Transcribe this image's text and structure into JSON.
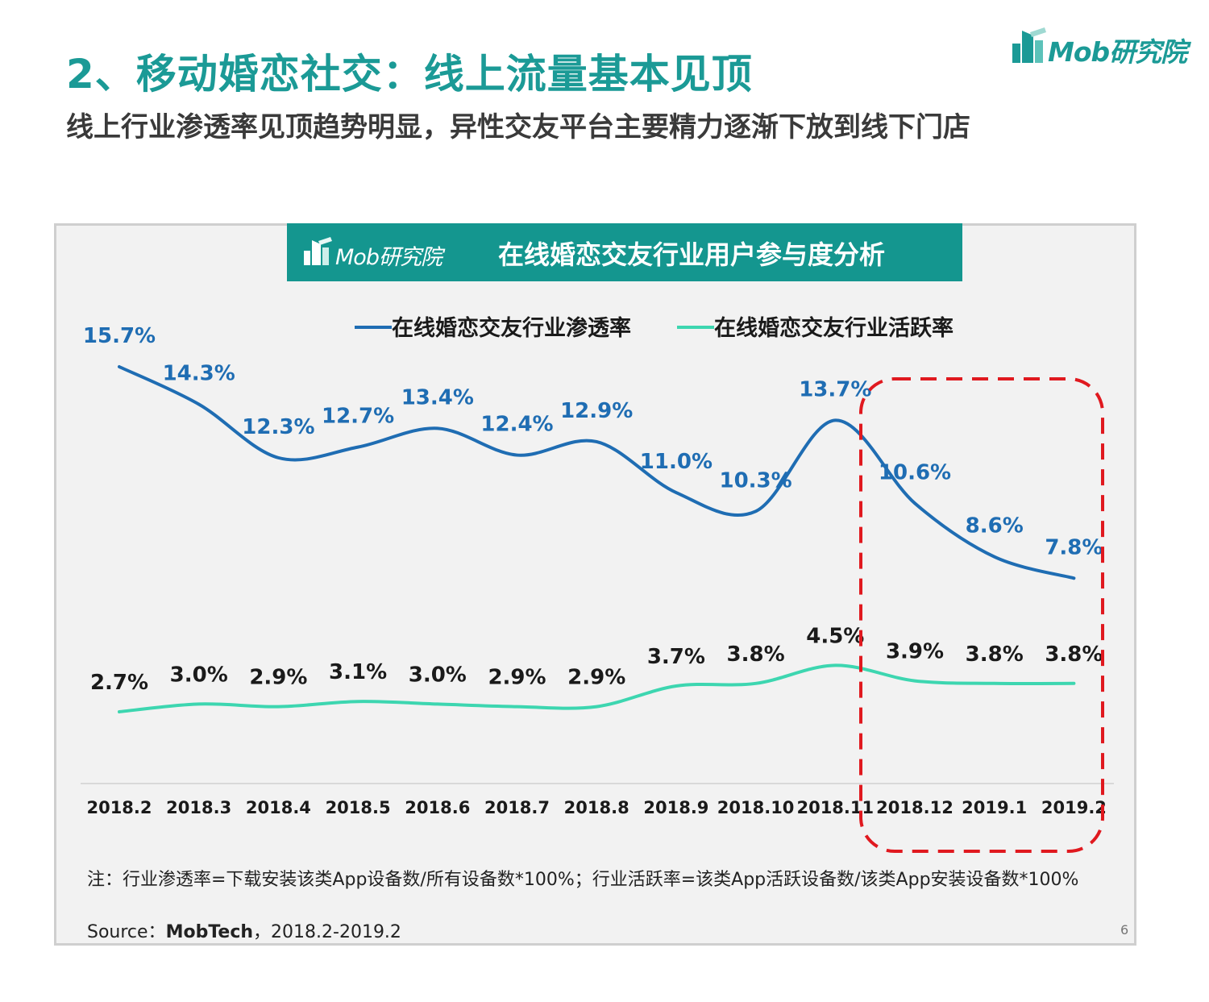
{
  "header": {
    "title": "2、移动婚恋社交：线上流量基本见顶",
    "subtitle": "线上行业渗透率见顶趋势明显，异性交友平台主要精力逐渐下放到线下门店",
    "logo_text": "Mob研究院"
  },
  "panel": {
    "logo_text": "Mob研究院",
    "title": "在线婚恋交友行业用户参与度分析"
  },
  "chart_data": {
    "type": "line",
    "title": "在线婚恋交友行业用户参与度分析",
    "categories": [
      "2018.2",
      "2018.3",
      "2018.4",
      "2018.5",
      "2018.6",
      "2018.7",
      "2018.8",
      "2018.9",
      "2018.10",
      "2018.11",
      "2018.12",
      "2019.1",
      "2019.2"
    ],
    "series": [
      {
        "name": "在线婚恋交友行业渗透率",
        "color": "#1f6db3",
        "values": [
          15.7,
          14.3,
          12.3,
          12.7,
          13.4,
          12.4,
          12.9,
          11.0,
          10.3,
          13.7,
          10.6,
          8.6,
          7.8
        ],
        "labels": [
          "15.7%",
          "14.3%",
          "12.3%",
          "12.7%",
          "13.4%",
          "12.4%",
          "12.9%",
          "11.0%",
          "10.3%",
          "13.7%",
          "10.6%",
          "8.6%",
          "7.8%"
        ]
      },
      {
        "name": "在线婚恋交友行业活跃率",
        "color": "#3dd6b0",
        "values": [
          2.7,
          3.0,
          2.9,
          3.1,
          3.0,
          2.9,
          2.9,
          3.7,
          3.8,
          4.5,
          3.9,
          3.8,
          3.8
        ],
        "labels": [
          "2.7%",
          "3.0%",
          "2.9%",
          "3.1%",
          "3.0%",
          "2.9%",
          "2.9%",
          "3.7%",
          "3.8%",
          "4.5%",
          "3.9%",
          "3.8%",
          "3.8%"
        ]
      }
    ],
    "legend_position": "top",
    "grid": false,
    "highlight": {
      "from": "2018.12",
      "to": "2019.2",
      "color": "#e0191f",
      "style": "dashed"
    }
  },
  "notes": {
    "formula": "注：行业渗透率=下载安装该类App设备数/所有设备数*100%；行业活跃率=该类App活跃设备数/该类App安装设备数*100%",
    "source_label": "Source：",
    "source_name": "MobTech",
    "source_range": "，2018.2-2019.2"
  },
  "page_number": "6"
}
